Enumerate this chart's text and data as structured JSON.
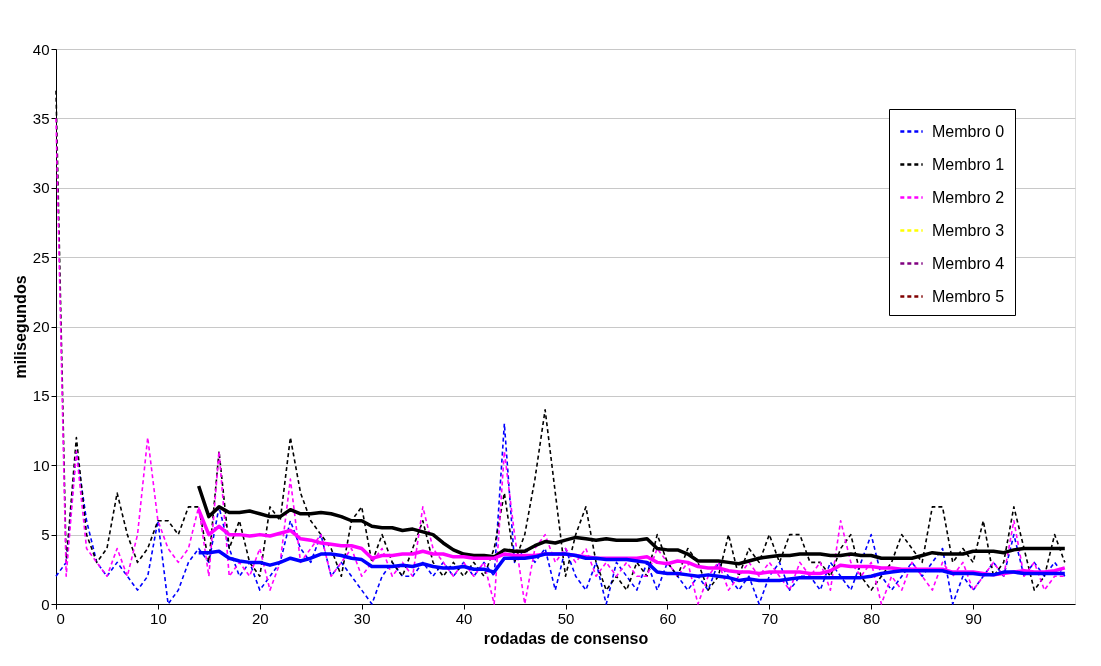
{
  "chart_data": {
    "type": "line",
    "xlabel": "rodadas de consenso",
    "ylabel": "milisegundos",
    "x": [
      0,
      1,
      2,
      3,
      4,
      5,
      6,
      7,
      8,
      9,
      10,
      11,
      12,
      13,
      14,
      15,
      16,
      17,
      18,
      19,
      20,
      21,
      22,
      23,
      24,
      25,
      26,
      27,
      28,
      29,
      30,
      31,
      32,
      33,
      34,
      35,
      36,
      37,
      38,
      39,
      40,
      41,
      42,
      43,
      44,
      45,
      46,
      47,
      48,
      49,
      50,
      51,
      52,
      53,
      54,
      55,
      56,
      57,
      58,
      59,
      60,
      61,
      62,
      63,
      64,
      65,
      66,
      67,
      68,
      69,
      70,
      71,
      72,
      73,
      74,
      75,
      76,
      77,
      78,
      79,
      80,
      81,
      82,
      83,
      84,
      85,
      86,
      87,
      88,
      89,
      90,
      91,
      92,
      93,
      94,
      95,
      96,
      97,
      98,
      99
    ],
    "xlim": [
      0,
      100
    ],
    "xticks": [
      0,
      10,
      20,
      30,
      40,
      50,
      60,
      70,
      80,
      90
    ],
    "ylim": [
      0,
      40
    ],
    "yticks": [
      0,
      5,
      10,
      15,
      20,
      25,
      30,
      35,
      40
    ],
    "grid": "y",
    "legend": "top right",
    "marker": "none",
    "series": [
      {
        "name": "Membro 0",
        "color": "#0000ff",
        "line_style": "dashed",
        "values": [
          2,
          3,
          11,
          6,
          3,
          2,
          3,
          2,
          1,
          2,
          6,
          0,
          1,
          3,
          4,
          3,
          7,
          4,
          2,
          3,
          1,
          2,
          3,
          6,
          4,
          3,
          5,
          2,
          3,
          2,
          1,
          0,
          2,
          3,
          2,
          2,
          3,
          2,
          3,
          2,
          3,
          2,
          3,
          2,
          13,
          3,
          4,
          3,
          4,
          1,
          4,
          2,
          1,
          3,
          0,
          3,
          2,
          1,
          3,
          1,
          3,
          2,
          1,
          2,
          1,
          3,
          2,
          1,
          2,
          0,
          2,
          3,
          1,
          2,
          2,
          1,
          3,
          2,
          1,
          3,
          5,
          2,
          1,
          2,
          3,
          2,
          3,
          4,
          0,
          2,
          1,
          2,
          3,
          2,
          5,
          2,
          3,
          2,
          3,
          2
        ]
      },
      {
        "name": "Membro 1",
        "color": "#000000",
        "line_style": "dashed",
        "values": [
          37,
          3,
          12,
          5,
          3,
          4,
          8,
          5,
          3,
          4,
          6,
          6,
          5,
          7,
          7,
          3,
          11,
          4,
          6,
          3,
          2,
          7,
          6,
          12,
          8,
          6,
          5,
          4,
          2,
          6,
          7,
          3,
          5,
          3,
          2,
          4,
          6,
          3,
          2,
          3,
          2,
          3,
          2,
          4,
          8,
          3,
          5,
          9,
          14,
          8,
          2,
          5,
          7,
          3,
          1,
          2,
          1,
          3,
          2,
          5,
          3,
          2,
          4,
          3,
          1,
          2,
          5,
          2,
          4,
          3,
          5,
          3,
          5,
          5,
          3,
          3,
          2,
          4,
          5,
          2,
          1,
          2,
          3,
          5,
          4,
          3,
          7,
          7,
          3,
          4,
          3,
          6,
          2,
          3,
          7,
          4,
          1,
          2,
          5,
          3
        ]
      },
      {
        "name": "Membro 2",
        "color": "#ff00ff",
        "line_style": "dashed",
        "values": [
          35,
          2,
          11,
          4,
          3,
          2,
          4,
          2,
          5,
          12,
          6,
          4,
          3,
          4,
          7,
          2,
          11,
          2,
          3,
          2,
          4,
          1,
          3,
          9,
          3,
          4,
          5,
          2,
          3,
          4,
          2,
          3,
          4,
          2,
          3,
          2,
          7,
          4,
          3,
          2,
          3,
          2,
          3,
          0,
          11,
          5,
          0,
          4,
          5,
          3,
          4,
          3,
          4,
          2,
          3,
          2,
          3,
          2,
          2,
          4,
          3,
          2,
          3,
          0,
          2,
          3,
          1,
          2,
          3,
          2,
          3,
          2,
          1,
          3,
          2,
          3,
          1,
          6,
          3,
          2,
          3,
          0,
          2,
          1,
          3,
          2,
          1,
          3,
          2,
          3,
          1,
          2,
          3,
          2,
          6,
          2,
          3,
          1,
          2,
          2
        ]
      },
      {
        "name": "Membro 3",
        "color": "#ffff00",
        "line_style": "dashed",
        "values": [
          null,
          null,
          null,
          null,
          null,
          null,
          null,
          null,
          null,
          null,
          null,
          null,
          null,
          null,
          null,
          null,
          null,
          null,
          null,
          null,
          null,
          null,
          null,
          null,
          null,
          null,
          null,
          null,
          null,
          null,
          null,
          null,
          null,
          null,
          null,
          null,
          null,
          null,
          null,
          null,
          null,
          null,
          null,
          null,
          null,
          null,
          null,
          null,
          null,
          null,
          null,
          null,
          null,
          null,
          null,
          null,
          null,
          null,
          null,
          null,
          null,
          null,
          null,
          null,
          null,
          null,
          null,
          null,
          null,
          null,
          null,
          null,
          null,
          null,
          null,
          null,
          null,
          null,
          null,
          null,
          null,
          null,
          null,
          null,
          null,
          null,
          null,
          null,
          null,
          null,
          null,
          null,
          null,
          null,
          null,
          null,
          null,
          null,
          null,
          null
        ]
      },
      {
        "name": "Membro 4",
        "color": "#800080",
        "line_style": "dashed",
        "values": [
          null,
          null,
          null,
          null,
          null,
          null,
          null,
          null,
          null,
          null,
          null,
          null,
          null,
          null,
          null,
          null,
          null,
          null,
          null,
          null,
          null,
          null,
          null,
          null,
          null,
          null,
          null,
          null,
          null,
          null,
          null,
          null,
          null,
          null,
          null,
          null,
          null,
          null,
          null,
          null,
          null,
          null,
          null,
          null,
          null,
          null,
          null,
          null,
          null,
          null,
          null,
          null,
          null,
          null,
          null,
          null,
          null,
          null,
          null,
          null,
          null,
          null,
          null,
          null,
          null,
          null,
          null,
          null,
          null,
          null,
          null,
          null,
          null,
          null,
          null,
          null,
          null,
          null,
          null,
          null,
          null,
          null,
          null,
          null,
          null,
          null,
          null,
          null,
          null,
          null,
          null,
          null,
          null,
          null,
          null,
          null,
          null,
          null,
          null,
          null
        ]
      },
      {
        "name": "Membro 5",
        "color": "#800000",
        "line_style": "dashed",
        "values": [
          null,
          null,
          null,
          null,
          null,
          null,
          null,
          null,
          null,
          null,
          null,
          null,
          null,
          null,
          null,
          null,
          null,
          null,
          null,
          null,
          null,
          null,
          null,
          null,
          null,
          null,
          null,
          null,
          null,
          null,
          null,
          null,
          null,
          null,
          null,
          null,
          null,
          null,
          null,
          null,
          null,
          null,
          null,
          null,
          null,
          null,
          null,
          null,
          null,
          null,
          null,
          null,
          null,
          null,
          null,
          null,
          null,
          null,
          null,
          null,
          null,
          null,
          null,
          null,
          null,
          null,
          null,
          null,
          null,
          null,
          null,
          null,
          null,
          null,
          null,
          null,
          null,
          null,
          null,
          null,
          null,
          null,
          null,
          null,
          null,
          null,
          null,
          null,
          null,
          null,
          null,
          null,
          null,
          null,
          null,
          null,
          null,
          null,
          null,
          null
        ]
      },
      {
        "color": "#000000",
        "line_style": "solid",
        "x": [
          14,
          15,
          16,
          17,
          18,
          19,
          20,
          21,
          22,
          23,
          24,
          25,
          26,
          27,
          28,
          29,
          30,
          31,
          32,
          33,
          34,
          35,
          36,
          37,
          38,
          39,
          40,
          41,
          42,
          43,
          44,
          45,
          46,
          47,
          48,
          49,
          50,
          51,
          52,
          53,
          54,
          55,
          56,
          57,
          58,
          59,
          60,
          61,
          62,
          63,
          64,
          65,
          66,
          67,
          68,
          69,
          70,
          71,
          72,
          73,
          74,
          75,
          76,
          77,
          78,
          79,
          80,
          81,
          82,
          83,
          84,
          85,
          86,
          87,
          88,
          89,
          90,
          91,
          92,
          93,
          94,
          95,
          96,
          97,
          98,
          99
        ],
        "values": [
          8.5,
          6.3,
          7,
          6.6,
          6.6,
          6.7,
          6.5,
          6.3,
          6.3,
          6.8,
          6.5,
          6.5,
          6.6,
          6.5,
          6.3,
          6.0,
          6.0,
          5.6,
          5.5,
          5.5,
          5.3,
          5.4,
          5.2,
          5.0,
          4.4,
          3.9,
          3.6,
          3.5,
          3.5,
          3.4,
          3.9,
          3.8,
          3.8,
          4.2,
          4.5,
          4.4,
          4.6,
          4.8,
          4.7,
          4.6,
          4.7,
          4.6,
          4.6,
          4.6,
          4.7,
          4.0,
          3.9,
          3.9,
          3.6,
          3.1,
          3.1,
          3.1,
          3.0,
          2.9,
          3.1,
          3.3,
          3.4,
          3.5,
          3.5,
          3.6,
          3.6,
          3.6,
          3.5,
          3.5,
          3.6,
          3.5,
          3.5,
          3.3,
          3.3,
          3.3,
          3.3,
          3.5,
          3.7,
          3.6,
          3.6,
          3.6,
          3.8,
          3.8,
          3.8,
          3.7,
          3.9,
          4.0,
          4.0,
          4.0,
          4.0,
          4.0
        ]
      },
      {
        "color": "#ff00ff",
        "line_style": "solid",
        "x": [
          14,
          15,
          16,
          17,
          18,
          19,
          20,
          21,
          22,
          23,
          24,
          25,
          26,
          27,
          28,
          29,
          30,
          31,
          32,
          33,
          34,
          35,
          36,
          37,
          38,
          39,
          40,
          41,
          42,
          43,
          44,
          45,
          46,
          47,
          48,
          49,
          50,
          51,
          52,
          53,
          54,
          55,
          56,
          57,
          58,
          59,
          60,
          61,
          62,
          63,
          64,
          65,
          66,
          67,
          68,
          69,
          70,
          71,
          72,
          73,
          74,
          75,
          76,
          77,
          78,
          79,
          80,
          81,
          82,
          83,
          84,
          85,
          86,
          87,
          88,
          89,
          90,
          91,
          92,
          93,
          94,
          95,
          96,
          97,
          98,
          99
        ],
        "values": [
          6.8,
          5.0,
          5.6,
          5.0,
          5.0,
          4.9,
          5.0,
          4.9,
          5.1,
          5.3,
          4.7,
          4.6,
          4.4,
          4.3,
          4.2,
          4.2,
          4.0,
          3.3,
          3.5,
          3.5,
          3.6,
          3.6,
          3.8,
          3.6,
          3.6,
          3.4,
          3.4,
          3.3,
          3.3,
          3.3,
          3.6,
          3.5,
          3.5,
          3.5,
          3.6,
          3.6,
          3.6,
          3.5,
          3.4,
          3.3,
          3.3,
          3.3,
          3.3,
          3.3,
          3.4,
          3.0,
          2.9,
          3.1,
          3.0,
          2.7,
          2.6,
          2.6,
          2.4,
          2.3,
          2.3,
          2.2,
          2.3,
          2.3,
          2.3,
          2.3,
          2.2,
          2.2,
          2.4,
          2.8,
          2.7,
          2.7,
          2.7,
          2.6,
          2.6,
          2.5,
          2.5,
          2.5,
          2.5,
          2.5,
          2.3,
          2.3,
          2.3,
          2.2,
          2.1,
          2.2,
          2.3,
          2.4,
          2.3,
          2.3,
          2.4,
          2.6
        ]
      },
      {
        "color": "#0000ff",
        "line_style": "solid",
        "x": [
          14,
          15,
          16,
          17,
          18,
          19,
          20,
          21,
          22,
          23,
          24,
          25,
          26,
          27,
          28,
          29,
          30,
          31,
          32,
          33,
          34,
          35,
          36,
          37,
          38,
          39,
          40,
          41,
          42,
          43,
          44,
          45,
          46,
          47,
          48,
          49,
          50,
          51,
          52,
          53,
          54,
          55,
          56,
          57,
          58,
          59,
          60,
          61,
          62,
          63,
          64,
          65,
          66,
          67,
          68,
          69,
          70,
          71,
          72,
          73,
          74,
          75,
          76,
          77,
          78,
          79,
          80,
          81,
          82,
          83,
          84,
          85,
          86,
          87,
          88,
          89,
          90,
          91,
          92,
          93,
          94,
          95,
          96,
          97,
          98,
          99
        ],
        "values": [
          3.7,
          3.7,
          3.8,
          3.3,
          3.1,
          3.0,
          3.0,
          2.8,
          3.0,
          3.3,
          3.1,
          3.3,
          3.6,
          3.6,
          3.5,
          3.3,
          3.2,
          2.7,
          2.7,
          2.7,
          2.8,
          2.7,
          2.9,
          2.7,
          2.6,
          2.6,
          2.7,
          2.5,
          2.5,
          2.3,
          3.3,
          3.3,
          3.3,
          3.4,
          3.6,
          3.6,
          3.6,
          3.5,
          3.3,
          3.3,
          3.2,
          3.2,
          3.2,
          3.1,
          3.0,
          2.3,
          2.2,
          2.2,
          2.1,
          2.0,
          2.1,
          2.0,
          1.9,
          1.7,
          1.8,
          1.7,
          1.7,
          1.7,
          1.8,
          1.9,
          1.9,
          1.9,
          1.9,
          1.9,
          1.9,
          1.9,
          2.0,
          2.2,
          2.3,
          2.4,
          2.4,
          2.4,
          2.4,
          2.4,
          2.2,
          2.2,
          2.2,
          2.1,
          2.1,
          2.3,
          2.3,
          2.2,
          2.2,
          2.2,
          2.2,
          2.2
        ]
      }
    ]
  }
}
